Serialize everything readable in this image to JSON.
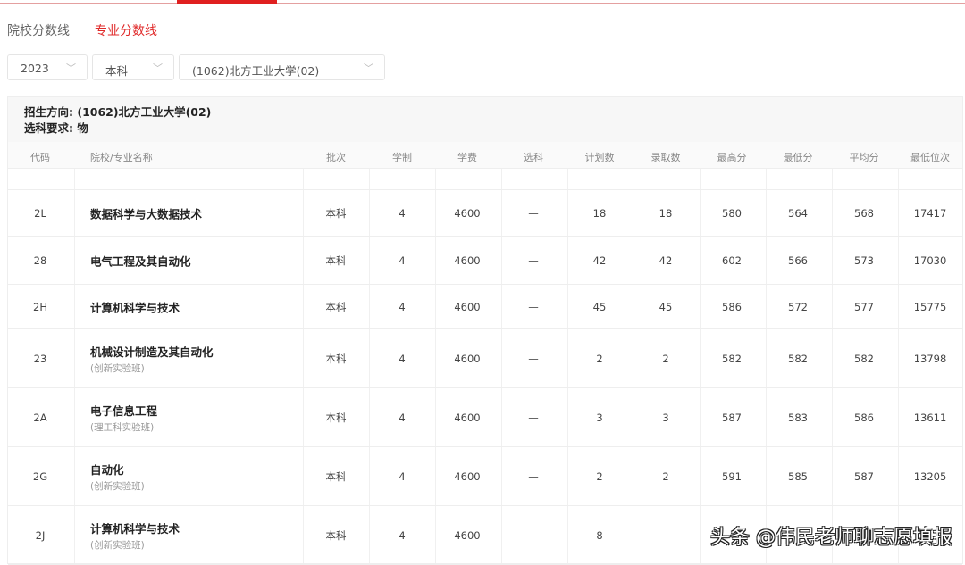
{
  "tabs": [
    {
      "label": "院校分数线",
      "active": false
    },
    {
      "label": "专业分数线",
      "active": true
    }
  ],
  "filters": {
    "year": "2023",
    "level": "本科",
    "school": "(1062)北方工业大学(02)"
  },
  "info": {
    "direction_label": "招生方向:",
    "direction": "(1062)北方工业大学(02)",
    "subject_label": "选科要求:",
    "subject": "物"
  },
  "columns": [
    "代码",
    "院校/专业名称",
    "批次",
    "学制",
    "学费",
    "选科",
    "计划数",
    "录取数",
    "最高分",
    "最低分",
    "平均分",
    "最低位次"
  ],
  "rows": [
    {
      "code": "2L",
      "name": "数据科学与大数据技术",
      "sub": "",
      "batch": "本科",
      "years": "4",
      "fee": "4600",
      "subj": "—",
      "plan": "18",
      "admit": "18",
      "max": "580",
      "min": "564",
      "avg": "568",
      "rank": "17417"
    },
    {
      "code": "28",
      "name": "电气工程及其自动化",
      "sub": "",
      "batch": "本科",
      "years": "4",
      "fee": "4600",
      "subj": "—",
      "plan": "42",
      "admit": "42",
      "max": "602",
      "min": "566",
      "avg": "573",
      "rank": "17030"
    },
    {
      "code": "2H",
      "name": "计算机科学与技术",
      "sub": "",
      "batch": "本科",
      "years": "4",
      "fee": "4600",
      "subj": "—",
      "plan": "45",
      "admit": "45",
      "max": "586",
      "min": "572",
      "avg": "577",
      "rank": "15775"
    },
    {
      "code": "23",
      "name": "机械设计制造及其自动化",
      "sub": "(创新实验班)",
      "batch": "本科",
      "years": "4",
      "fee": "4600",
      "subj": "—",
      "plan": "2",
      "admit": "2",
      "max": "582",
      "min": "582",
      "avg": "582",
      "rank": "13798"
    },
    {
      "code": "2A",
      "name": "电子信息工程",
      "sub": "(理工科实验班)",
      "batch": "本科",
      "years": "4",
      "fee": "4600",
      "subj": "—",
      "plan": "3",
      "admit": "3",
      "max": "587",
      "min": "583",
      "avg": "586",
      "rank": "13611"
    },
    {
      "code": "2G",
      "name": "自动化",
      "sub": "(创新实验班)",
      "batch": "本科",
      "years": "4",
      "fee": "4600",
      "subj": "—",
      "plan": "2",
      "admit": "2",
      "max": "591",
      "min": "585",
      "avg": "587",
      "rank": "13205"
    },
    {
      "code": "2J",
      "name": "计算机科学与技术",
      "sub": "(创新实验班)",
      "batch": "本科",
      "years": "4",
      "fee": "4600",
      "subj": "—",
      "plan": "8",
      "admit": "",
      "max": "",
      "min": "",
      "avg": "",
      "rank": ""
    }
  ],
  "watermark": "头条 @伟民老师聊志愿填报"
}
